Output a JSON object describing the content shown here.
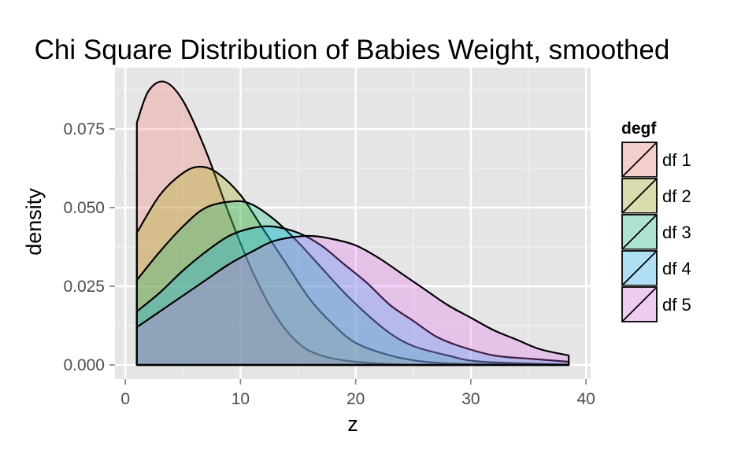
{
  "chart_data": {
    "type": "area",
    "title": "Chi Square Distribution of Babies Weight, smoothed",
    "xlabel": "z",
    "ylabel": "density",
    "xlim": [
      -0.9,
      40.4
    ],
    "ylim": [
      -0.0045,
      0.0945
    ],
    "x_ticks": [
      0,
      10,
      20,
      30,
      40
    ],
    "x_tick_labels": [
      "0",
      "10",
      "20",
      "30",
      "40"
    ],
    "y_ticks": [
      0.0,
      0.025,
      0.05,
      0.075
    ],
    "y_tick_labels": [
      "0.000",
      "0.025",
      "0.050",
      "0.075"
    ],
    "grid": true,
    "legend": {
      "title": "degf",
      "position": "right"
    },
    "x_range": [
      1,
      38.5
    ],
    "series": [
      {
        "name": "df 1",
        "color": "#F8766D",
        "peak_x": 3.4,
        "peak_y": 0.09,
        "start_y": 0.077,
        "points": [
          [
            1,
            0.077
          ],
          [
            2,
            0.087
          ],
          [
            3.4,
            0.09
          ],
          [
            5,
            0.084
          ],
          [
            7,
            0.068
          ],
          [
            9,
            0.048
          ],
          [
            11,
            0.03
          ],
          [
            13,
            0.016
          ],
          [
            15,
            0.007
          ],
          [
            17,
            0.003
          ],
          [
            20,
            0.001
          ],
          [
            25,
            0.0
          ],
          [
            30,
            0.0
          ],
          [
            38.5,
            0.0
          ]
        ]
      },
      {
        "name": "df 2",
        "color": "#A3A500",
        "peak_x": 6.5,
        "peak_y": 0.063,
        "start_y": 0.042,
        "points": [
          [
            1,
            0.042
          ],
          [
            3,
            0.054
          ],
          [
            5,
            0.061
          ],
          [
            6.5,
            0.063
          ],
          [
            8,
            0.061
          ],
          [
            10,
            0.054
          ],
          [
            12,
            0.043
          ],
          [
            14,
            0.032
          ],
          [
            16,
            0.021
          ],
          [
            18,
            0.013
          ],
          [
            20,
            0.007
          ],
          [
            23,
            0.003
          ],
          [
            26,
            0.001
          ],
          [
            30,
            0.0003
          ],
          [
            38.5,
            0.0
          ]
        ]
      },
      {
        "name": "df 3",
        "color": "#00BF7D",
        "peak_x": 9.4,
        "peak_y": 0.052,
        "start_y": 0.027,
        "points": [
          [
            1,
            0.027
          ],
          [
            3,
            0.036
          ],
          [
            5,
            0.044
          ],
          [
            7,
            0.05
          ],
          [
            9.4,
            0.052
          ],
          [
            11,
            0.051
          ],
          [
            13,
            0.046
          ],
          [
            15,
            0.039
          ],
          [
            17,
            0.031
          ],
          [
            19,
            0.023
          ],
          [
            21,
            0.016
          ],
          [
            23,
            0.01
          ],
          [
            25,
            0.006
          ],
          [
            28,
            0.003
          ],
          [
            31,
            0.001
          ],
          [
            38.5,
            0.0001
          ]
        ]
      },
      {
        "name": "df 4",
        "color": "#00B0F6",
        "peak_x": 12.8,
        "peak_y": 0.044,
        "start_y": 0.017,
        "points": [
          [
            1,
            0.017
          ],
          [
            3,
            0.023
          ],
          [
            5,
            0.03
          ],
          [
            7,
            0.036
          ],
          [
            9,
            0.041
          ],
          [
            11,
            0.0435
          ],
          [
            12.8,
            0.044
          ],
          [
            15,
            0.042
          ],
          [
            17,
            0.038
          ],
          [
            19,
            0.032
          ],
          [
            21,
            0.026
          ],
          [
            23,
            0.019
          ],
          [
            25,
            0.014
          ],
          [
            27,
            0.009
          ],
          [
            29,
            0.006
          ],
          [
            32,
            0.003
          ],
          [
            35,
            0.002
          ],
          [
            38.5,
            0.001
          ]
        ]
      },
      {
        "name": "df 5",
        "color": "#E76BF3",
        "peak_x": 15.8,
        "peak_y": 0.041,
        "start_y": 0.012,
        "points": [
          [
            1,
            0.012
          ],
          [
            3,
            0.017
          ],
          [
            5,
            0.022
          ],
          [
            7,
            0.027
          ],
          [
            9,
            0.032
          ],
          [
            11,
            0.036
          ],
          [
            13,
            0.0395
          ],
          [
            15.8,
            0.041
          ],
          [
            18,
            0.04
          ],
          [
            20,
            0.038
          ],
          [
            22,
            0.034
          ],
          [
            24,
            0.029
          ],
          [
            26,
            0.024
          ],
          [
            28,
            0.019
          ],
          [
            30,
            0.015
          ],
          [
            32,
            0.011
          ],
          [
            34,
            0.008
          ],
          [
            36,
            0.005
          ],
          [
            38.5,
            0.003
          ]
        ]
      }
    ]
  }
}
